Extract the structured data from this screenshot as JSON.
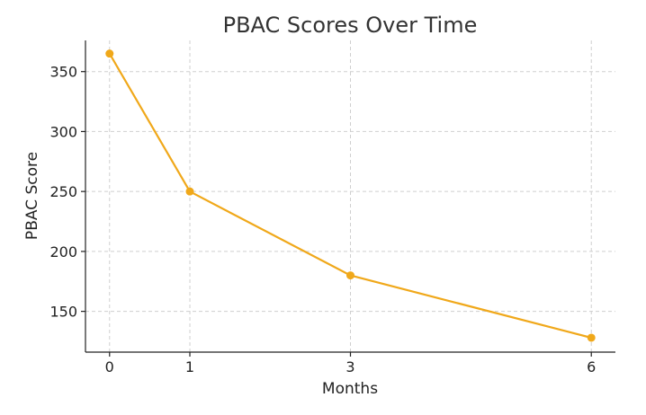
{
  "chart_data": {
    "type": "line",
    "title": "PBAC Scores Over Time",
    "xlabel": "Months",
    "ylabel": "PBAC Score",
    "x": [
      0,
      1,
      3,
      6
    ],
    "x_ticks": [
      "0",
      "1",
      "3",
      "6"
    ],
    "y_ticks": [
      150,
      200,
      250,
      300,
      350
    ],
    "xlim": [
      -0.3,
      6.3
    ],
    "ylim": [
      116,
      376
    ],
    "grid": true,
    "series": [
      {
        "values": [
          365,
          250,
          180,
          128
        ],
        "color": "#F0A81A"
      }
    ]
  }
}
